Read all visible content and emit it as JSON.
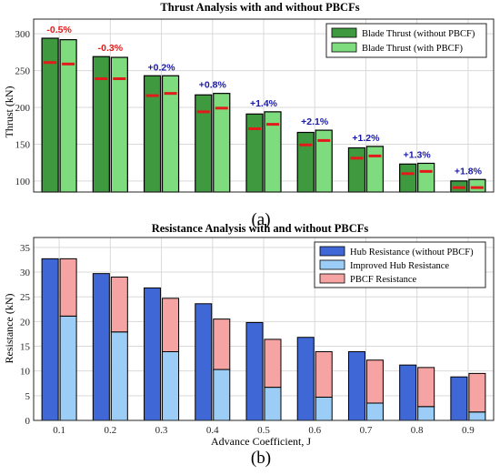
{
  "chart_data": [
    {
      "type": "bar",
      "panel_label": "(a)",
      "title": "Thrust Analysis with and without PBCFs",
      "xlabel": "",
      "ylabel": "Thrust (kN)",
      "ylim": [
        85,
        320
      ],
      "yticks": [
        "100",
        "150",
        "200",
        "250",
        "300"
      ],
      "ytick_values": [
        100,
        150,
        200,
        250,
        300
      ],
      "grid": true,
      "legend_position": "top-right",
      "categories": [
        "0.1",
        "0.2",
        "0.3",
        "0.4",
        "0.5",
        "0.6",
        "0.7",
        "0.8",
        "0.9"
      ],
      "series": [
        {
          "name": "Blade Thrust (without PBCF)",
          "color": "#3f9a3f",
          "values": [
            294,
            269,
            243,
            217,
            191,
            166,
            145,
            123,
            100
          ]
        },
        {
          "name": "Blade Thrust (with PBCF)",
          "color": "#7edc7e",
          "values": [
            292,
            268,
            243,
            219,
            194,
            169,
            147,
            124,
            102
          ]
        }
      ],
      "markers_red": {
        "color": "#e21a1a",
        "without": [
          261,
          239,
          216,
          194,
          171,
          149,
          131,
          110,
          91
        ],
        "with": [
          259,
          239,
          219,
          199,
          177,
          155,
          134,
          113,
          91
        ]
      },
      "annotations": [
        {
          "text": "-0.5%",
          "color": "#e21a1a"
        },
        {
          "text": "-0.3%",
          "color": "#e21a1a"
        },
        {
          "text": "+0.2%",
          "color": "#1a1aa6"
        },
        {
          "text": "+0.8%",
          "color": "#1a1aa6"
        },
        {
          "text": "+1.4%",
          "color": "#1a1aa6"
        },
        {
          "text": "+2.1%",
          "color": "#1a1aa6"
        },
        {
          "text": "+1.2%",
          "color": "#1a1aa6"
        },
        {
          "text": "+1.3%",
          "color": "#1a1aa6"
        },
        {
          "text": "+1.8%",
          "color": "#1a1aa6"
        }
      ]
    },
    {
      "type": "bar",
      "panel_label": "(b)",
      "title": "Resistance Analysis with and without PBCFs",
      "xlabel": "Advance Coefficient, J",
      "ylabel": "Resistance (kN)",
      "ylim": [
        0,
        37
      ],
      "yticks": [
        "0",
        "5",
        "10",
        "15",
        "20",
        "25",
        "30",
        "35"
      ],
      "ytick_values": [
        0,
        5,
        10,
        15,
        20,
        25,
        30,
        35
      ],
      "grid": true,
      "legend_position": "top-right",
      "categories": [
        "0.1",
        "0.2",
        "0.3",
        "0.4",
        "0.5",
        "0.6",
        "0.7",
        "0.8",
        "0.9"
      ],
      "series": [
        {
          "name": "Hub Resistance (without PBCF)",
          "color": "#3f68d6",
          "values": [
            32.7,
            29.7,
            26.8,
            23.6,
            19.8,
            16.8,
            13.9,
            11.2,
            8.8
          ]
        },
        {
          "name": "Improved Hub Resistance",
          "color": "#9ccdf7",
          "values": [
            21.1,
            17.9,
            13.9,
            10.3,
            6.7,
            4.7,
            3.5,
            2.8,
            1.7
          ]
        },
        {
          "name": "PBCF Resistance",
          "color": "#f5a3a3",
          "values": [
            11.6,
            11.1,
            10.8,
            10.2,
            9.7,
            9.2,
            8.7,
            7.9,
            7.8
          ]
        }
      ]
    }
  ]
}
